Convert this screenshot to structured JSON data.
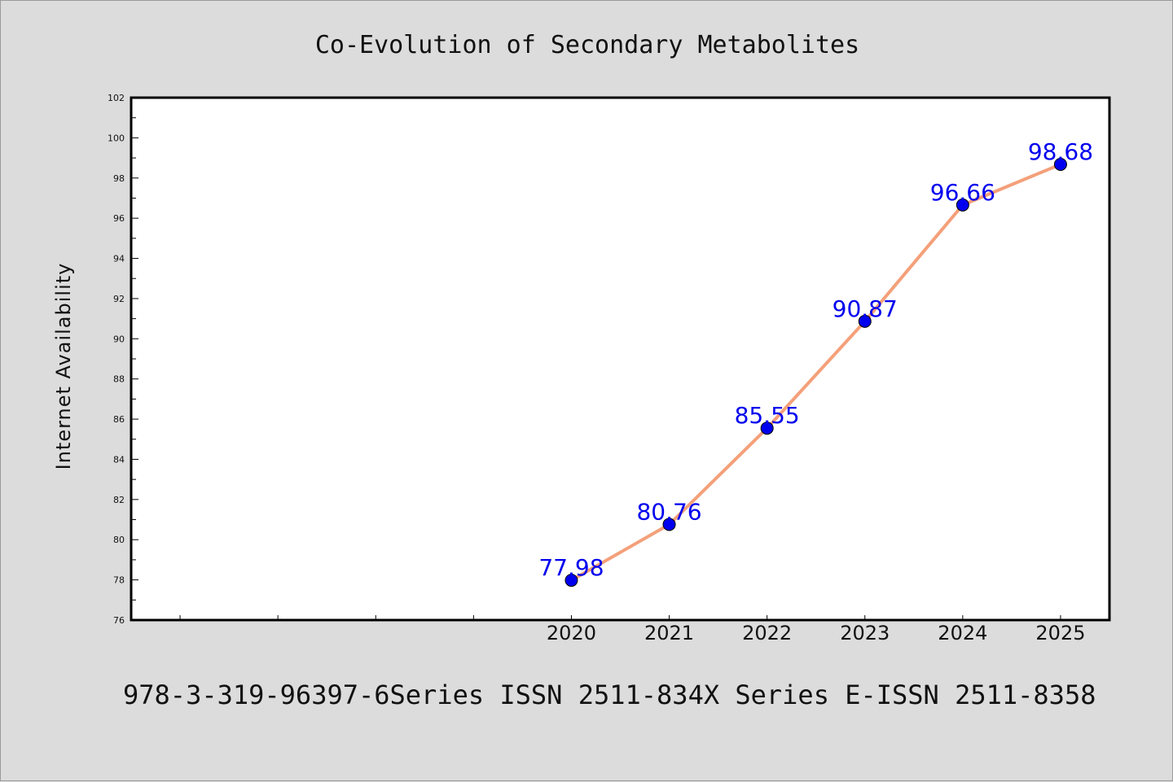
{
  "chart_data": {
    "type": "line",
    "title": "Co-Evolution of Secondary Metabolites",
    "xlabel": "",
    "ylabel": "Internet Availability",
    "categories": [
      "2020",
      "2021",
      "2022",
      "2023",
      "2024",
      "2025"
    ],
    "series": [
      {
        "values": [
          77.98,
          80.76,
          85.55,
          90.87,
          96.66,
          98.68
        ],
        "data_labels": [
          "77.98",
          "80.76",
          "85.55",
          "90.87",
          "96.66",
          "98.68"
        ],
        "line_color": "#f4a07a",
        "marker_color": "#0000ee",
        "label_color": "#0000ee"
      }
    ],
    "ylim": [
      76,
      102
    ],
    "yticks": [
      "76",
      "78",
      "80",
      "82",
      "84",
      "86",
      "88",
      "90",
      "92",
      "94",
      "96",
      "98",
      "100",
      "102"
    ],
    "grid": false,
    "legend": "none"
  },
  "footer": {
    "text": "978-3-319-96397-6Series ISSN 2511-834X Series E-ISSN 2511-8358"
  },
  "colors": {
    "background": "#dcdcdc",
    "plot_background": "#ffffff",
    "axis": "#000000"
  }
}
